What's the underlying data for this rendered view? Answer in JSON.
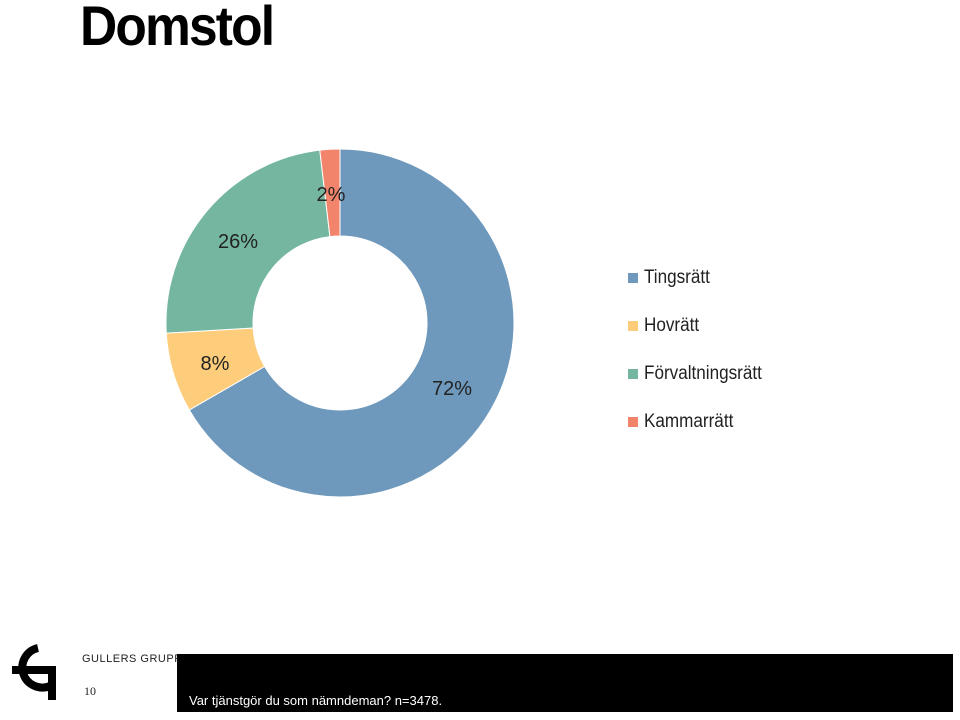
{
  "slide": {
    "title": "Domstol",
    "brand": "GULLERS GRUPP",
    "page_number": "10",
    "footer_text": "Var tjänstgör du som nämndeman? n=3478."
  },
  "chart_data": {
    "type": "pie",
    "variant": "donut",
    "categories": [
      "Tingsrätt",
      "Hovrätt",
      "Förvaltningsrätt",
      "Kammarrätt"
    ],
    "values": [
      72,
      8,
      26,
      2
    ],
    "data_labels": [
      "72%",
      "8%",
      "26%",
      "2%"
    ],
    "colors": [
      "#6e99bc",
      "#fdcd7b",
      "#75b6a0",
      "#f1846a"
    ],
    "legend_position": "right"
  }
}
